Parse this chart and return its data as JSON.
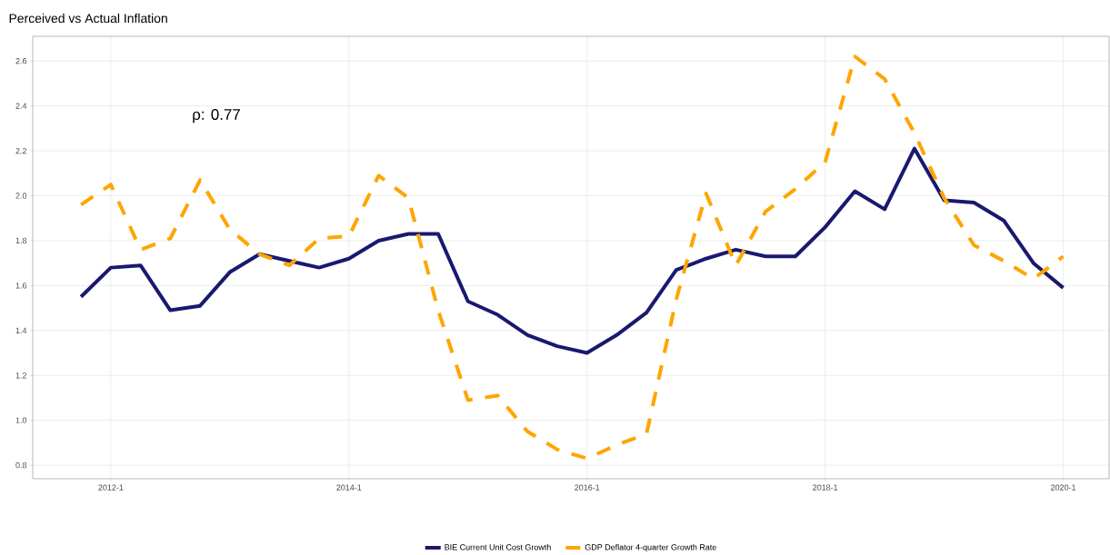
{
  "chart_data": {
    "type": "line",
    "title": "Perceived vs Actual Inflation",
    "x": [
      "2011-10",
      "2012-01",
      "2012-04",
      "2012-07",
      "2012-10",
      "2013-01",
      "2013-04",
      "2013-07",
      "2013-10",
      "2014-01",
      "2014-04",
      "2014-07",
      "2014-10",
      "2015-01",
      "2015-04",
      "2015-07",
      "2015-10",
      "2016-01",
      "2016-04",
      "2016-07",
      "2016-10",
      "2017-01",
      "2017-04",
      "2017-07",
      "2017-10",
      "2018-01",
      "2018-04",
      "2018-07",
      "2018-10",
      "2019-01",
      "2019-04",
      "2019-07",
      "2019-10",
      "2020-01"
    ],
    "series": [
      {
        "name": "BIE Current Unit Cost Growth",
        "color": "#191970",
        "line_style": "solid",
        "values": [
          1.55,
          1.68,
          1.69,
          1.49,
          1.51,
          1.66,
          1.74,
          1.71,
          1.68,
          1.72,
          1.8,
          1.83,
          1.83,
          1.53,
          1.47,
          1.38,
          1.33,
          1.3,
          1.38,
          1.48,
          1.67,
          1.72,
          1.76,
          1.73,
          1.73,
          1.86,
          2.02,
          1.94,
          2.21,
          1.98,
          1.97,
          1.89,
          1.7,
          1.59
        ]
      },
      {
        "name": "GDP Deflator 4-quarter Growth Rate",
        "color": "#ffa500",
        "line_style": "dashed",
        "values": [
          1.96,
          2.05,
          1.76,
          1.81,
          2.07,
          1.85,
          1.74,
          1.69,
          1.81,
          1.82,
          2.09,
          1.99,
          1.49,
          1.09,
          1.11,
          0.95,
          0.87,
          0.83,
          0.89,
          0.94,
          1.54,
          2.01,
          1.69,
          1.93,
          2.03,
          2.15,
          2.62,
          2.52,
          2.28,
          1.99,
          1.78,
          1.71,
          1.63,
          1.73
        ]
      }
    ],
    "xlim": [
      "2011-05-05",
      "2020-05-20"
    ],
    "xticks": [
      {
        "value": "2012-01",
        "label": "2012-1"
      },
      {
        "value": "2014-01",
        "label": "2014-1"
      },
      {
        "value": "2016-01",
        "label": "2016-1"
      },
      {
        "value": "2018-01",
        "label": "2018-1"
      },
      {
        "value": "2020-01",
        "label": "2020-1"
      }
    ],
    "ylim": [
      0.74,
      2.71
    ],
    "yticks": [
      0.8,
      {
        "value": 1.0,
        "label": "1.0"
      },
      1.2,
      1.4,
      1.6,
      1.8,
      {
        "value": 2.0,
        "label": "2.0"
      },
      2.2,
      2.4,
      2.6
    ],
    "annotations": [
      "ρ:  0.77"
    ],
    "grid": true,
    "legend": "bottom"
  }
}
